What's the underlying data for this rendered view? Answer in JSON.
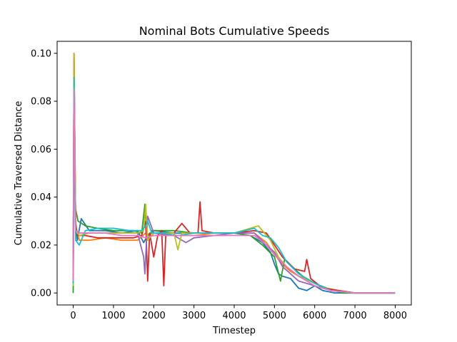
{
  "chart_data": {
    "type": "line",
    "title": "Nominal Bots Cumulative Speeds",
    "xlabel": "Timestep",
    "ylabel": "Cumulative Traversed Distance",
    "xlim": [
      -400,
      8400
    ],
    "ylim": [
      -0.005,
      0.105
    ],
    "xticks": [
      0,
      1000,
      2000,
      3000,
      4000,
      5000,
      6000,
      7000,
      8000
    ],
    "yticks": [
      0.0,
      0.02,
      0.04,
      0.06,
      0.08,
      0.1
    ],
    "xtick_labels": [
      "0",
      "1000",
      "2000",
      "3000",
      "4000",
      "5000",
      "6000",
      "7000",
      "8000"
    ],
    "ytick_labels": [
      "0.00",
      "0.02",
      "0.04",
      "0.06",
      "0.08",
      "0.10"
    ],
    "grid": false,
    "legend": "none",
    "series": [
      {
        "color": "#1f77b4",
        "points": [
          [
            0,
            0.006
          ],
          [
            20,
            0.1
          ],
          [
            50,
            0.03
          ],
          [
            100,
            0.022
          ],
          [
            200,
            0.031
          ],
          [
            400,
            0.026
          ],
          [
            800,
            0.026
          ],
          [
            1200,
            0.025
          ],
          [
            1600,
            0.026
          ],
          [
            1750,
            0.021
          ],
          [
            1850,
            0.024
          ],
          [
            2000,
            0.026
          ],
          [
            2500,
            0.025
          ],
          [
            3000,
            0.025
          ],
          [
            3500,
            0.025
          ],
          [
            4000,
            0.025
          ],
          [
            4400,
            0.024
          ],
          [
            4700,
            0.021
          ],
          [
            4900,
            0.017
          ],
          [
            5000,
            0.012
          ],
          [
            5100,
            0.008
          ],
          [
            5200,
            0.007
          ],
          [
            5400,
            0.006
          ],
          [
            5600,
            0.002
          ],
          [
            5800,
            0.001
          ],
          [
            6000,
            0.003
          ],
          [
            6200,
            0.001
          ],
          [
            6500,
            0.0
          ],
          [
            7000,
            0.0
          ],
          [
            8000,
            0.0
          ]
        ]
      },
      {
        "color": "#ff7f0e",
        "points": [
          [
            0,
            0.01
          ],
          [
            20,
            0.1
          ],
          [
            60,
            0.028
          ],
          [
            150,
            0.022
          ],
          [
            400,
            0.022
          ],
          [
            800,
            0.023
          ],
          [
            1200,
            0.022
          ],
          [
            1600,
            0.022
          ],
          [
            1800,
            0.025
          ],
          [
            2000,
            0.024
          ],
          [
            2500,
            0.024
          ],
          [
            3000,
            0.024
          ],
          [
            3500,
            0.025
          ],
          [
            4000,
            0.025
          ],
          [
            4500,
            0.025
          ],
          [
            4800,
            0.021
          ],
          [
            5000,
            0.016
          ],
          [
            5200,
            0.012
          ],
          [
            5400,
            0.009
          ],
          [
            5600,
            0.007
          ],
          [
            5800,
            0.006
          ],
          [
            6000,
            0.004
          ],
          [
            6300,
            0.002
          ],
          [
            6600,
            0.001
          ],
          [
            7000,
            0.0
          ],
          [
            8000,
            0.0
          ]
        ]
      },
      {
        "color": "#2ca02c",
        "points": [
          [
            0,
            0.0
          ],
          [
            20,
            0.06
          ],
          [
            60,
            0.035
          ],
          [
            120,
            0.03
          ],
          [
            300,
            0.028
          ],
          [
            600,
            0.027
          ],
          [
            1000,
            0.026
          ],
          [
            1500,
            0.026
          ],
          [
            1700,
            0.025
          ],
          [
            1780,
            0.037
          ],
          [
            1850,
            0.022
          ],
          [
            1950,
            0.026
          ],
          [
            2200,
            0.026
          ],
          [
            2500,
            0.026
          ],
          [
            3000,
            0.025
          ],
          [
            3500,
            0.025
          ],
          [
            4000,
            0.025
          ],
          [
            4400,
            0.024
          ],
          [
            4700,
            0.02
          ],
          [
            5000,
            0.015
          ],
          [
            5150,
            0.005
          ],
          [
            5250,
            0.014
          ],
          [
            5500,
            0.01
          ],
          [
            5700,
            0.007
          ],
          [
            6000,
            0.004
          ],
          [
            6300,
            0.002
          ],
          [
            6700,
            0.0
          ],
          [
            8000,
            0.0
          ]
        ]
      },
      {
        "color": "#d62728",
        "points": [
          [
            0,
            0.005
          ],
          [
            20,
            0.098
          ],
          [
            60,
            0.03
          ],
          [
            100,
            0.024
          ],
          [
            300,
            0.024
          ],
          [
            600,
            0.023
          ],
          [
            1000,
            0.023
          ],
          [
            1500,
            0.023
          ],
          [
            1700,
            0.024
          ],
          [
            1800,
            0.03
          ],
          [
            1850,
            0.005
          ],
          [
            1900,
            0.025
          ],
          [
            2000,
            0.015
          ],
          [
            2100,
            0.024
          ],
          [
            2200,
            0.026
          ],
          [
            2250,
            0.003
          ],
          [
            2300,
            0.025
          ],
          [
            2500,
            0.025
          ],
          [
            2700,
            0.029
          ],
          [
            2900,
            0.025
          ],
          [
            3100,
            0.025
          ],
          [
            3150,
            0.038
          ],
          [
            3200,
            0.026
          ],
          [
            3500,
            0.025
          ],
          [
            4000,
            0.025
          ],
          [
            4500,
            0.026
          ],
          [
            4800,
            0.025
          ],
          [
            5000,
            0.02
          ],
          [
            5200,
            0.015
          ],
          [
            5500,
            0.01
          ],
          [
            5750,
            0.009
          ],
          [
            5800,
            0.014
          ],
          [
            5900,
            0.006
          ],
          [
            6200,
            0.002
          ],
          [
            6600,
            0.001
          ],
          [
            7000,
            0.0
          ],
          [
            8000,
            0.0
          ]
        ]
      },
      {
        "color": "#9467bd",
        "points": [
          [
            0,
            0.004
          ],
          [
            20,
            0.095
          ],
          [
            60,
            0.025
          ],
          [
            150,
            0.025
          ],
          [
            400,
            0.025
          ],
          [
            800,
            0.025
          ],
          [
            1200,
            0.025
          ],
          [
            1600,
            0.025
          ],
          [
            1750,
            0.015
          ],
          [
            1780,
            0.008
          ],
          [
            1850,
            0.032
          ],
          [
            2000,
            0.025
          ],
          [
            2500,
            0.024
          ],
          [
            2800,
            0.021
          ],
          [
            3000,
            0.023
          ],
          [
            3500,
            0.024
          ],
          [
            4000,
            0.025
          ],
          [
            4500,
            0.025
          ],
          [
            4800,
            0.02
          ],
          [
            5000,
            0.017
          ],
          [
            5200,
            0.011
          ],
          [
            5400,
            0.008
          ],
          [
            5600,
            0.005
          ],
          [
            6000,
            0.003
          ],
          [
            6400,
            0.001
          ],
          [
            7000,
            0.0
          ],
          [
            8000,
            0.0
          ]
        ]
      },
      {
        "color": "#bcbd22",
        "points": [
          [
            0,
            0.003
          ],
          [
            20,
            0.1
          ],
          [
            60,
            0.026
          ],
          [
            150,
            0.024
          ],
          [
            400,
            0.025
          ],
          [
            800,
            0.025
          ],
          [
            1200,
            0.025
          ],
          [
            1600,
            0.025
          ],
          [
            1750,
            0.026
          ],
          [
            1800,
            0.037
          ],
          [
            1850,
            0.022
          ],
          [
            2000,
            0.025
          ],
          [
            2300,
            0.025
          ],
          [
            2500,
            0.025
          ],
          [
            2600,
            0.018
          ],
          [
            2700,
            0.025
          ],
          [
            3000,
            0.025
          ],
          [
            3500,
            0.025
          ],
          [
            4000,
            0.025
          ],
          [
            4600,
            0.028
          ],
          [
            4900,
            0.022
          ],
          [
            5100,
            0.015
          ],
          [
            5300,
            0.011
          ],
          [
            5600,
            0.007
          ],
          [
            6000,
            0.004
          ],
          [
            6400,
            0.001
          ],
          [
            7000,
            0.0
          ],
          [
            8000,
            0.0
          ]
        ]
      },
      {
        "color": "#17becf",
        "points": [
          [
            0,
            0.004
          ],
          [
            20,
            0.09
          ],
          [
            60,
            0.022
          ],
          [
            150,
            0.02
          ],
          [
            300,
            0.026
          ],
          [
            600,
            0.027
          ],
          [
            1000,
            0.027
          ],
          [
            1400,
            0.026
          ],
          [
            1700,
            0.026
          ],
          [
            1800,
            0.028
          ],
          [
            1850,
            0.03
          ],
          [
            1950,
            0.025
          ],
          [
            2200,
            0.025
          ],
          [
            2600,
            0.024
          ],
          [
            3000,
            0.025
          ],
          [
            3500,
            0.025
          ],
          [
            4000,
            0.025
          ],
          [
            4500,
            0.027
          ],
          [
            4700,
            0.024
          ],
          [
            4900,
            0.023
          ],
          [
            5100,
            0.019
          ],
          [
            5300,
            0.013
          ],
          [
            5600,
            0.008
          ],
          [
            6000,
            0.004
          ],
          [
            6400,
            0.001
          ],
          [
            7000,
            0.0
          ],
          [
            8000,
            0.0
          ]
        ]
      },
      {
        "color": "#e377c2",
        "points": [
          [
            0,
            0.005
          ],
          [
            20,
            0.085
          ],
          [
            60,
            0.026
          ],
          [
            150,
            0.025
          ],
          [
            400,
            0.025
          ],
          [
            800,
            0.025
          ],
          [
            1200,
            0.024
          ],
          [
            1600,
            0.024
          ],
          [
            1800,
            0.023
          ],
          [
            2000,
            0.024
          ],
          [
            2500,
            0.024
          ],
          [
            3000,
            0.024
          ],
          [
            3500,
            0.024
          ],
          [
            4000,
            0.024
          ],
          [
            4500,
            0.024
          ],
          [
            4800,
            0.02
          ],
          [
            5000,
            0.016
          ],
          [
            5300,
            0.011
          ],
          [
            5600,
            0.007
          ],
          [
            6000,
            0.003
          ],
          [
            6400,
            0.001
          ],
          [
            7000,
            0.0
          ],
          [
            8000,
            0.0
          ]
        ]
      }
    ]
  }
}
